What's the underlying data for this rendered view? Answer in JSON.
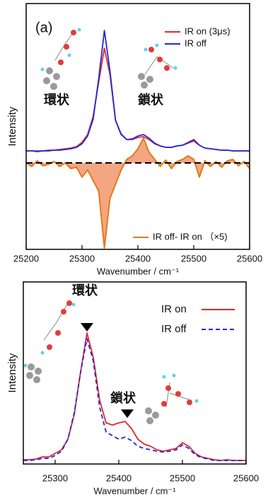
{
  "chart_data": [
    {
      "type": "line",
      "xlabel": "Wavenumber / cm⁻¹",
      "ylabel": "Intensity",
      "annotations": [
        "(a)",
        "環状",
        "鎖状"
      ],
      "xlim": [
        25200,
        25600
      ],
      "xticks": [
        25200,
        25300,
        25400,
        25500,
        25600
      ],
      "ylim": [
        -1.22,
        2.25
      ],
      "reference_line": {
        "value": 0,
        "color": "#000000",
        "dash": true
      },
      "x": [
        25200,
        25210,
        25220,
        25230,
        25240,
        25250,
        25260,
        25270,
        25280,
        25290,
        25300,
        25310,
        25320,
        25330,
        25340,
        25350,
        25360,
        25370,
        25380,
        25390,
        25400,
        25410,
        25420,
        25430,
        25440,
        25450,
        25460,
        25470,
        25480,
        25490,
        25500,
        25510,
        25520,
        25530,
        25540,
        25550,
        25560,
        25570,
        25580,
        25590,
        25600
      ],
      "series": [
        {
          "name": "IR on (3μs)",
          "color": "#e8262b",
          "values": [
            0.17,
            0.17,
            0.17,
            0.17,
            0.18,
            0.18,
            0.19,
            0.2,
            0.21,
            0.23,
            0.29,
            0.4,
            0.66,
            1.15,
            1.62,
            1.25,
            0.6,
            0.41,
            0.33,
            0.33,
            0.36,
            0.37,
            0.33,
            0.27,
            0.24,
            0.22,
            0.22,
            0.24,
            0.25,
            0.28,
            0.31,
            0.25,
            0.21,
            0.2,
            0.19,
            0.18,
            0.18,
            0.17,
            0.17,
            0.17,
            0.17
          ]
        },
        {
          "name": "IR off",
          "color": "#1f2bd6",
          "values": [
            0.17,
            0.17,
            0.16,
            0.17,
            0.17,
            0.18,
            0.18,
            0.19,
            0.2,
            0.22,
            0.27,
            0.38,
            0.62,
            1.2,
            1.87,
            1.3,
            0.6,
            0.4,
            0.33,
            0.34,
            0.38,
            0.4,
            0.35,
            0.28,
            0.24,
            0.22,
            0.22,
            0.24,
            0.25,
            0.29,
            0.33,
            0.25,
            0.21,
            0.2,
            0.19,
            0.18,
            0.18,
            0.17,
            0.17,
            0.17,
            0.17
          ]
        },
        {
          "name": "IR off- IR on （×5)",
          "color": "#e07b1a",
          "fill": "#f4a582",
          "values": [
            0,
            -0.05,
            0.03,
            -0.04,
            -0.02,
            0.02,
            -0.05,
            0,
            -0.08,
            -0.06,
            -0.2,
            -0.1,
            -0.25,
            -0.4,
            -1.2,
            -0.5,
            -0.3,
            -0.1,
            0.05,
            0.1,
            0.2,
            0.35,
            0.15,
            0.05,
            -0.05,
            0.04,
            -0.08,
            0.02,
            0.05,
            0.1,
            0.05,
            -0.2,
            0.03,
            -0.05,
            0.02,
            -0.06,
            0.03,
            0.05,
            -0.04,
            0.02,
            -0.08
          ]
        }
      ]
    },
    {
      "type": "line",
      "xlabel": "Wavenumber / cm⁻¹",
      "ylabel": "Intensity",
      "annotations": [
        "環状",
        "鎖状"
      ],
      "xlim": [
        25250,
        25600
      ],
      "xticks": [
        25300,
        25400,
        25500,
        25600
      ],
      "ylim": [
        0,
        2.57
      ],
      "x": [
        25250,
        25260,
        25270,
        25280,
        25290,
        25300,
        25310,
        25320,
        25330,
        25340,
        25350,
        25360,
        25370,
        25380,
        25390,
        25400,
        25410,
        25420,
        25430,
        25440,
        25450,
        25460,
        25470,
        25480,
        25490,
        25500,
        25510,
        25520,
        25530,
        25540,
        25550,
        25560,
        25570,
        25580,
        25590,
        25600
      ],
      "series": [
        {
          "name": "IR on",
          "color": "#e8262b",
          "values": [
            0.06,
            0.06,
            0.07,
            0.1,
            0.1,
            0.15,
            0.2,
            0.35,
            0.7,
            1.3,
            1.85,
            1.5,
            0.9,
            0.58,
            0.55,
            0.58,
            0.6,
            0.5,
            0.35,
            0.28,
            0.25,
            0.2,
            0.18,
            0.2,
            0.22,
            0.3,
            0.25,
            0.15,
            0.1,
            0.08,
            0.06,
            0.05,
            0.06,
            0.05,
            0.05,
            0.05
          ]
        },
        {
          "name": "IR off",
          "color": "#1f2bd6",
          "dash": true,
          "values": [
            0.05,
            0.05,
            0.06,
            0.08,
            0.08,
            0.12,
            0.18,
            0.35,
            0.72,
            1.3,
            1.77,
            1.45,
            0.8,
            0.45,
            0.4,
            0.35,
            0.38,
            0.33,
            0.25,
            0.22,
            0.2,
            0.18,
            0.17,
            0.18,
            0.2,
            0.27,
            0.22,
            0.13,
            0.09,
            0.07,
            0.05,
            0.05,
            0.05,
            0.05,
            0.05,
            0.05
          ]
        }
      ]
    }
  ]
}
